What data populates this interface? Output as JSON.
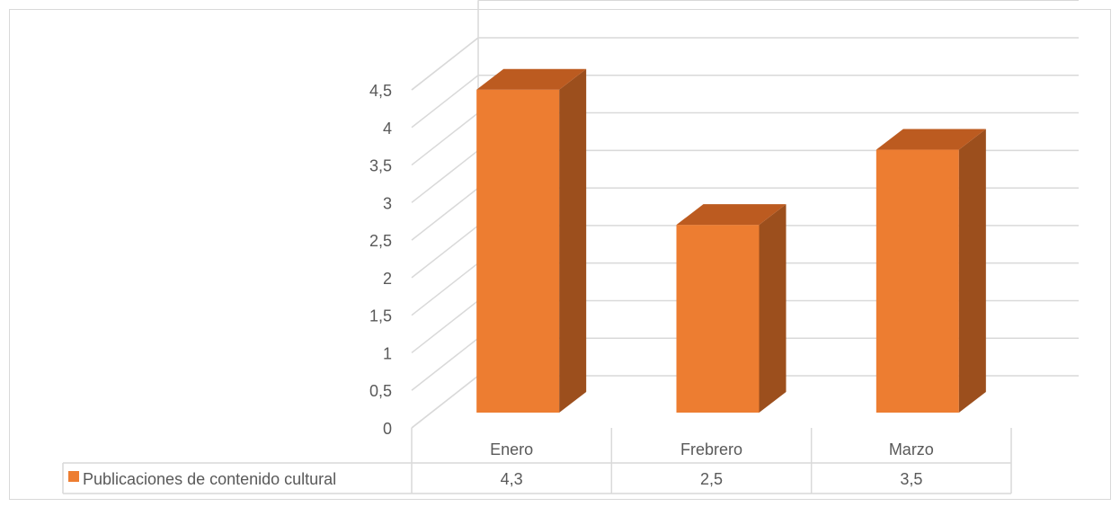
{
  "chart_data": {
    "type": "bar",
    "categories": [
      "Enero",
      "Frebrero",
      "Marzo"
    ],
    "series": [
      {
        "name": "Publicaciones de contenido cultural",
        "values": [
          4.3,
          2.5,
          3.5
        ],
        "value_labels": [
          "4,3",
          "2,5",
          "3,5"
        ]
      }
    ],
    "ylim": [
      0,
      4.5
    ],
    "y_ticks": [
      "0",
      "0,5",
      "1",
      "1,5",
      "2",
      "2,5",
      "3",
      "3,5",
      "4",
      "4,5"
    ],
    "grid": true,
    "legend": "data-table",
    "colors": {
      "bar_front": "#ed7d31",
      "bar_side": "#9c4f1d",
      "bar_top": "#bc5b20",
      "grid": "#d9d9d9"
    }
  }
}
